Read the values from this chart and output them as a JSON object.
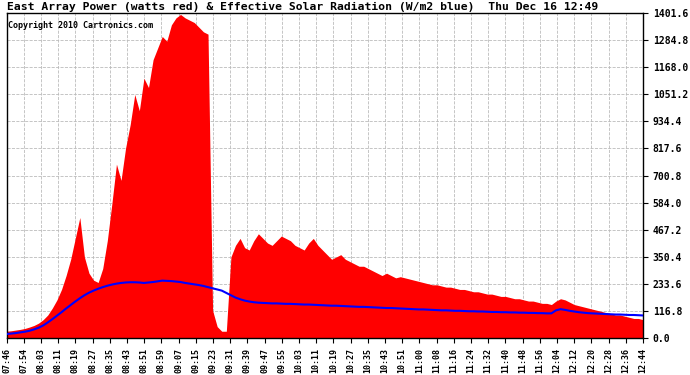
{
  "title": "East Array Power (watts red) & Effective Solar Radiation (W/m2 blue)  Thu Dec 16 12:49",
  "copyright": "Copyright 2010 Cartronics.com",
  "y_min": 0.0,
  "y_max": 1401.6,
  "y_ticks": [
    0.0,
    116.8,
    233.6,
    350.4,
    467.2,
    584.0,
    700.8,
    817.6,
    934.4,
    1051.2,
    1168.0,
    1284.8,
    1401.6
  ],
  "background_color": "#ffffff",
  "grid_color": "#bbbbbb",
  "red_color": "#ff0000",
  "blue_color": "#0000ff",
  "x_labels": [
    "07:46",
    "07:54",
    "08:03",
    "08:11",
    "08:19",
    "08:27",
    "08:35",
    "08:43",
    "08:51",
    "08:59",
    "09:07",
    "09:15",
    "09:23",
    "09:31",
    "09:39",
    "09:47",
    "09:55",
    "10:03",
    "10:11",
    "10:19",
    "10:27",
    "10:35",
    "10:43",
    "10:51",
    "11:00",
    "11:08",
    "11:16",
    "11:24",
    "11:32",
    "11:40",
    "11:48",
    "11:56",
    "12:04",
    "12:12",
    "12:20",
    "12:28",
    "12:36",
    "12:44"
  ],
  "fig_width": 6.9,
  "fig_height": 3.75,
  "dpi": 100,
  "red_data": [
    30,
    32,
    35,
    38,
    42,
    48,
    55,
    65,
    80,
    100,
    130,
    165,
    210,
    270,
    340,
    430,
    520,
    350,
    280,
    250,
    240,
    300,
    420,
    580,
    750,
    680,
    820,
    920,
    1050,
    980,
    1120,
    1080,
    1200,
    1250,
    1300,
    1280,
    1350,
    1380,
    1395,
    1380,
    1370,
    1360,
    1340,
    1320,
    1310,
    120,
    50,
    30,
    30,
    350,
    400,
    430,
    390,
    380,
    420,
    450,
    430,
    410,
    400,
    420,
    440,
    430,
    420,
    400,
    390,
    380,
    410,
    430,
    400,
    380,
    360,
    340,
    350,
    360,
    340,
    330,
    320,
    310,
    310,
    300,
    290,
    280,
    270,
    280,
    270,
    260,
    265,
    260,
    255,
    250,
    245,
    240,
    235,
    230,
    230,
    225,
    220,
    220,
    215,
    210,
    210,
    205,
    200,
    200,
    195,
    190,
    190,
    185,
    180,
    180,
    175,
    170,
    170,
    165,
    160,
    160,
    155,
    150,
    150,
    145,
    160,
    170,
    165,
    155,
    145,
    140,
    135,
    130,
    125,
    120,
    115,
    110,
    105,
    100,
    100,
    95,
    90,
    85,
    85,
    80
  ],
  "blue_data": [
    18,
    20,
    22,
    25,
    28,
    32,
    38,
    45,
    55,
    68,
    82,
    97,
    112,
    128,
    143,
    158,
    172,
    185,
    196,
    205,
    213,
    220,
    226,
    231,
    235,
    238,
    240,
    241,
    241,
    240,
    238,
    240,
    242,
    245,
    248,
    247,
    246,
    244,
    242,
    238,
    235,
    232,
    229,
    225,
    220,
    215,
    210,
    205,
    195,
    185,
    175,
    168,
    162,
    158,
    155,
    153,
    152,
    151,
    150,
    150,
    149,
    148,
    148,
    147,
    146,
    145,
    145,
    144,
    143,
    142,
    141,
    140,
    140,
    139,
    138,
    137,
    136,
    135,
    135,
    134,
    133,
    132,
    131,
    130,
    130,
    129,
    128,
    127,
    126,
    125,
    124,
    124,
    123,
    122,
    121,
    120,
    120,
    119,
    118,
    118,
    117,
    116,
    116,
    115,
    115,
    114,
    113,
    113,
    112,
    112,
    111,
    111,
    110,
    110,
    109,
    109,
    108,
    108,
    107,
    107,
    120,
    125,
    122,
    118,
    115,
    112,
    110,
    108,
    107,
    106,
    105,
    104,
    103,
    102,
    102,
    101,
    100,
    100,
    99,
    98
  ]
}
